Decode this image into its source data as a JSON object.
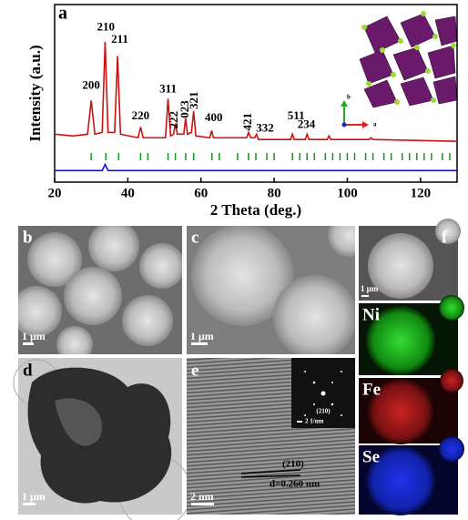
{
  "chart_data": {
    "type": "line",
    "label": "a",
    "xlabel": "2 Theta (deg.)",
    "ylabel": "Intensity (a.u.)",
    "xlim": [
      20,
      130
    ],
    "ylim": [
      0,
      100
    ],
    "xticks": [
      20,
      40,
      60,
      80,
      100,
      120
    ],
    "series": [
      {
        "color": "#cc1111",
        "x": [
          20,
          25,
          29,
          30,
          31,
          33,
          33.8,
          34.6,
          36.4,
          37.2,
          38,
          42.8,
          43.5,
          44.2,
          50.3,
          51,
          51.7,
          52.5,
          53,
          53.5,
          55.3,
          55.8,
          56.3,
          57.4,
          58,
          58.6,
          62.4,
          62.9,
          63.4,
          72.5,
          73,
          73.6,
          74.7,
          75.2,
          75.7,
          84.5,
          85,
          85.5,
          88.5,
          89,
          89.5,
          94.5,
          95,
          95.5,
          106,
          106.5,
          107,
          130
        ],
        "values": [
          27,
          26,
          27,
          46,
          27,
          28,
          79,
          28,
          28,
          71,
          27,
          25,
          31,
          25,
          25,
          47,
          26,
          27,
          33,
          27,
          27,
          36,
          27,
          28,
          40,
          26,
          25,
          29,
          25,
          25,
          28,
          25,
          25,
          27,
          24,
          24,
          27,
          24,
          24,
          27,
          24,
          24,
          26,
          24,
          24,
          25,
          24,
          23
        ]
      },
      {
        "color": "#1111dd",
        "x": [
          20,
          33,
          33.8,
          34.6,
          130
        ],
        "values": [
          6.5,
          6.5,
          10,
          6.5,
          6.5
        ]
      }
    ],
    "reference_color": "#119911",
    "reference_ticks": [
      30,
      34,
      37.5,
      43.5,
      45.5,
      51,
      53,
      55.8,
      58,
      63,
      65,
      70,
      73,
      75,
      78,
      80,
      85,
      87,
      89,
      91,
      94,
      96,
      98,
      100,
      102,
      105,
      107,
      110,
      112,
      115,
      117,
      119,
      121,
      123,
      126,
      128
    ],
    "annotations": [
      {
        "text": "200",
        "x": 30,
        "y": 54
      },
      {
        "text": "210",
        "x": 34,
        "y": 87
      },
      {
        "text": "211",
        "x": 37.8,
        "y": 80
      },
      {
        "text": "220",
        "x": 43.5,
        "y": 37
      },
      {
        "text": "311",
        "x": 51,
        "y": 52
      },
      {
        "text": "222",
        "x": 52.8,
        "y": 35,
        "vertical": true
      },
      {
        "text": "023",
        "x": 55.8,
        "y": 41,
        "vertical": true
      },
      {
        "text": "321",
        "x": 58.3,
        "y": 46,
        "vertical": true
      },
      {
        "text": "400",
        "x": 63.5,
        "y": 36
      },
      {
        "text": "421",
        "x": 73,
        "y": 34,
        "vertical": true
      },
      {
        "text": "332",
        "x": 77.5,
        "y": 30
      },
      {
        "text": "511",
        "x": 86,
        "y": 37
      },
      {
        "text": "234",
        "x": 88.8,
        "y": 32
      }
    ]
  },
  "inset_axes": {
    "b": "b",
    "a": "a"
  },
  "panels": {
    "b": {
      "label": "b",
      "scale": "1 μm"
    },
    "c": {
      "label": "c",
      "scale": "1 μm"
    },
    "d": {
      "label": "d",
      "scale": "1 μm"
    },
    "e": {
      "label": "e",
      "scale": "2 nm",
      "inset_scale": "2 1/nm",
      "inset_spot": "(210)",
      "plane": "(210)",
      "spacing": "d=0.260 nm"
    },
    "f": {
      "label": "f",
      "scale": "1 μm"
    }
  },
  "maps": [
    "Ni",
    "Fe",
    "Se"
  ]
}
